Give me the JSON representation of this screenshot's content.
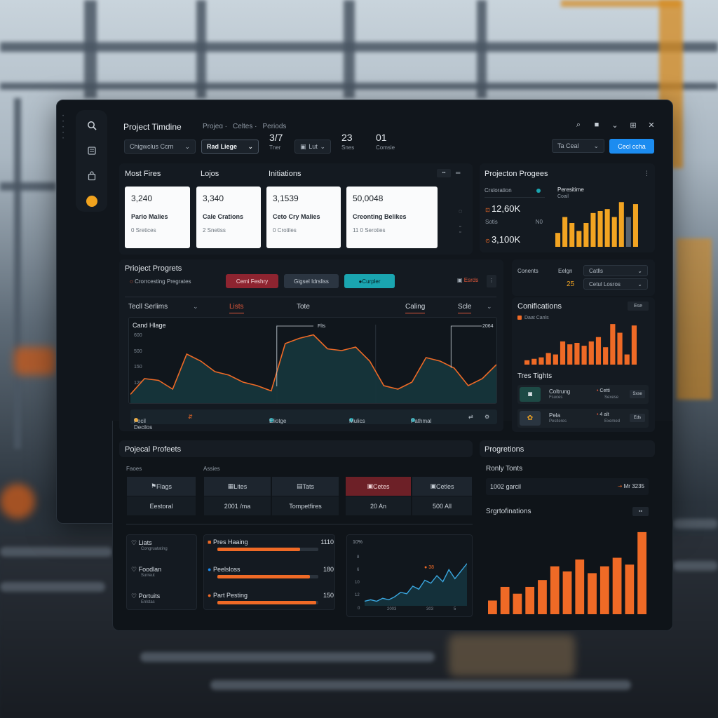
{
  "colors": {
    "accent": "#ef6a26",
    "amber": "#f2a422",
    "blue": "#1c8cf0",
    "teal": "#1aa5b0",
    "red": "#6d2027"
  },
  "sidebar": {
    "icons": [
      "search-icon",
      "document-icon",
      "bag-icon",
      "badge-icon"
    ]
  },
  "header": {
    "title": "Project Timdine",
    "crumbs": [
      "Projeɑ ·",
      "Celtes ·",
      "Periods"
    ],
    "filters": [
      "Chigwclus Ccrn",
      "Rad Liege",
      "Lut"
    ],
    "stats": [
      {
        "value": "3/7",
        "label": "Tner"
      },
      {
        "value": "23",
        "label": "Snes"
      },
      {
        "value": "01",
        "label": "Comsie"
      }
    ],
    "search_select": "Ta Ceal",
    "primary_button": "Cecl ccha"
  },
  "most_fires": {
    "tabs": [
      "Most Fires",
      "Lojos",
      "Initiations"
    ],
    "cards": [
      {
        "value": "3,240",
        "name": "Pario Malies",
        "sub": "0 Sretices"
      },
      {
        "value": "3,340",
        "name": "Cale Crations",
        "sub": "2 Snetiss"
      },
      {
        "value": "3,1539",
        "name": "Ceto Cry Malies",
        "sub": "0 Crotiles"
      },
      {
        "value": "50,0048",
        "name": "Creonting Belikes",
        "sub": "11 0 Seroties"
      }
    ]
  },
  "project_progress": {
    "title": "Projecton Progees",
    "label": "Crsloration",
    "values": [
      "12,60K",
      "3,100K"
    ],
    "small_label": "Sotis",
    "small_value": "N0",
    "legend_title": "Peresitime",
    "legend_sub": "Coail",
    "chart_data": {
      "type": "bar",
      "values": [
        14,
        30,
        24,
        16,
        24,
        34,
        36,
        38,
        30,
        45,
        30,
        43
      ],
      "colors": [
        "amber",
        "amber",
        "amber",
        "amber",
        "amber",
        "amber",
        "amber",
        "amber",
        "amber",
        "amber",
        "gray",
        "amber"
      ],
      "ylim": [
        0,
        48
      ]
    }
  },
  "progress_panel": {
    "title": "Prioject Progrets",
    "subtitle": "Crorrcesting Pregrates",
    "chips": [
      "Cemi Feshry",
      "Gigsel Idrsliss",
      "Curpler"
    ],
    "action": "Esrds",
    "tabs": [
      "Tecll Serlims",
      "Lists",
      "Tote",
      "Caling",
      "Scle"
    ],
    "chart": {
      "title": "Cand Hlage",
      "annotations": [
        "Flts",
        "2064"
      ],
      "yticks": [
        "600",
        "500",
        "150",
        "120"
      ],
      "chart_data": {
        "type": "area",
        "y": [
          5,
          14,
          13,
          8,
          28,
          24,
          18,
          16,
          12,
          10,
          7,
          34,
          37,
          39,
          31,
          30,
          32,
          24,
          10,
          8,
          12,
          26,
          24,
          20,
          10,
          14,
          22
        ],
        "ylim": [
          0,
          48
        ]
      }
    },
    "legend": [
      "Fecil Decilos",
      "Eliotge",
      "Mulics",
      "Pathmal"
    ]
  },
  "right_filters": {
    "labels": [
      "Conents",
      "Eelgn"
    ],
    "selects": [
      "Catlls",
      "Cetul Losros"
    ],
    "value": "25"
  },
  "conifications": {
    "title": "Conifications",
    "badge": "Ese",
    "legend": "Daat Canls",
    "chart_data": {
      "type": "bar",
      "values": [
        3,
        4,
        5,
        8,
        7,
        16,
        14,
        15,
        13,
        16,
        19,
        12,
        28,
        22,
        7,
        27
      ],
      "ylim": [
        0,
        30
      ]
    }
  },
  "tres_tails": {
    "title": "Tres Tights",
    "rows": [
      {
        "name": "Coltrung",
        "sub": "Fsuces",
        "mid": "Cetti",
        "mid_sub": "Sexese",
        "end": "Sxse"
      },
      {
        "name": "Pela",
        "sub": "Pesiteres",
        "mid": "4 alt",
        "mid_sub": "Exemed",
        "end": "Eds"
      }
    ]
  },
  "projects": {
    "title": "Pojecal Profeets",
    "col_labels": [
      "Faoes",
      "Assies"
    ],
    "row1": [
      "Flags",
      "Lites",
      "Tats",
      "Cetes",
      "Cetles"
    ],
    "row2": [
      "Eestoral",
      "2001 /ma",
      "Tompetfires",
      "20 An",
      "500 All"
    ],
    "list": [
      {
        "name": "Liats",
        "sub": "Congruatating"
      },
      {
        "name": "Foodlan",
        "sub": "Surreut"
      },
      {
        "name": "Portuits",
        "sub": "Enlstas"
      }
    ],
    "bars": [
      {
        "label": "Pres Haaing",
        "value": "1110",
        "progress": 0.82
      },
      {
        "label": "Peelsloss",
        "value": "180",
        "progress": 0.92
      },
      {
        "label": "Part Pesting",
        "value": "150",
        "progress": 0.98
      }
    ],
    "mini_chart": {
      "yticks": [
        "10%",
        "8",
        "6",
        "10",
        "12",
        "0"
      ],
      "xticks": [
        "2003",
        "303",
        "5"
      ],
      "annotation": "38",
      "chart_data": {
        "type": "line",
        "y": [
          3,
          4,
          3,
          5,
          4,
          6,
          9,
          8,
          13,
          11,
          17,
          15,
          20,
          16,
          24,
          18,
          23,
          28
        ],
        "ylim": [
          0,
          40
        ]
      }
    }
  },
  "progrations": {
    "title": "Progretions",
    "sub_title": "Ronly Tonts",
    "row_left": "1002 garcil",
    "row_right": "Mr 3235",
    "chart_title": "Srgrtofinations",
    "chart_data": {
      "type": "bar",
      "values": [
        8,
        16,
        12,
        16,
        20,
        28,
        25,
        32,
        24,
        28,
        33,
        29,
        48
      ],
      "ylim": [
        0,
        50
      ]
    }
  }
}
